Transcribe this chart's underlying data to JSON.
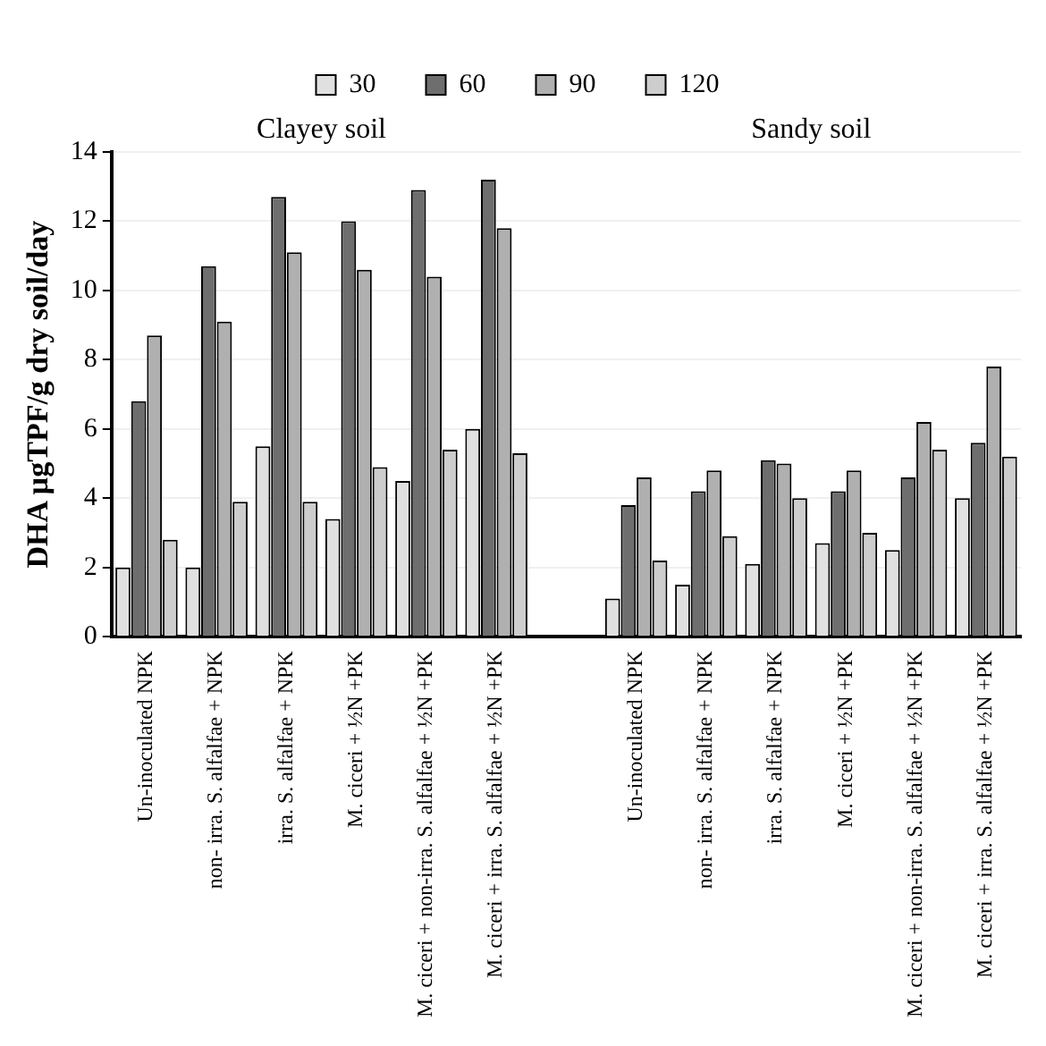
{
  "chart_data": {
    "type": "bar",
    "categories": [
      "Un-inoculated NPK",
      "non- irra. S. alfalfae + NPK",
      "irra. S. alfalfae + NPK",
      "M. ciceri + ½N +PK",
      "M. ciceri + non-irra. S. alfalfae + ½N +PK",
      "M. ciceri + irra. S. alfalfae + ½N +PK",
      null,
      "Un-inoculated NPK",
      "non- irra. S. alfalfae + NPK",
      "irra. S. alfalfae + NPK",
      "M. ciceri + ½N +PK",
      "M. ciceri + non-irra. S. alfalfae + ½N +PK",
      "M. ciceri + irra. S. alfalfae + ½N +PK"
    ],
    "series": [
      {
        "name": "30",
        "color": "#e0e0e0",
        "values": [
          2.0,
          2.0,
          5.5,
          3.4,
          4.5,
          6.0,
          null,
          1.1,
          1.5,
          2.1,
          2.7,
          2.5,
          4.0
        ]
      },
      {
        "name": "60",
        "color": "#6e6e6e",
        "values": [
          6.8,
          10.7,
          12.7,
          12.0,
          12.9,
          13.2,
          null,
          3.8,
          4.2,
          5.1,
          4.2,
          4.6,
          5.6
        ]
      },
      {
        "name": "90",
        "color": "#b0b0b0",
        "values": [
          8.7,
          9.1,
          11.1,
          10.6,
          10.4,
          11.8,
          null,
          4.6,
          4.8,
          5.0,
          4.8,
          6.2,
          7.8
        ]
      },
      {
        "name": "120",
        "color": "#cdcdcd",
        "values": [
          2.8,
          3.9,
          3.9,
          4.9,
          5.4,
          5.3,
          null,
          2.2,
          2.9,
          4.0,
          3.0,
          5.4,
          5.2
        ]
      }
    ],
    "ylabel": "DHA µgTPF/g dry soil/day",
    "ylim": [
      0,
      14
    ],
    "yticks": [
      0,
      2,
      4,
      6,
      8,
      10,
      12,
      14
    ],
    "annotations": [
      "Clayey soil",
      "Sandy soil"
    ],
    "grid": "y",
    "legend": "top"
  }
}
